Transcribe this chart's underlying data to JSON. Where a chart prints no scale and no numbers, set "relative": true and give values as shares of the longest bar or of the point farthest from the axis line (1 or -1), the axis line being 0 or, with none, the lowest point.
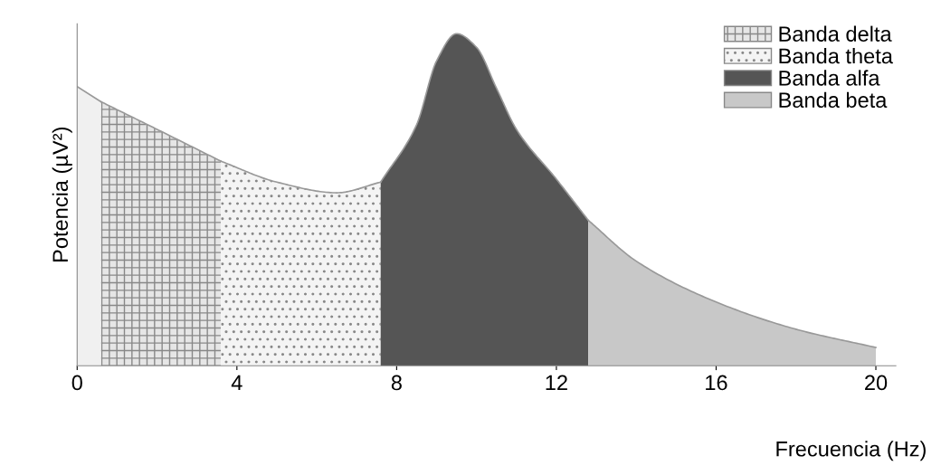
{
  "chart_data": {
    "type": "area",
    "relative": true,
    "xlabel": "Frecuencia (Hz)",
    "ylabel": "Potencia (µV²)",
    "xlim": [
      0,
      20.5
    ],
    "xticks": [
      0,
      4,
      8,
      12,
      16,
      20
    ],
    "legend": "top right",
    "grid": false,
    "series": [
      {
        "color": "#f0f0f0",
        "x": [
          0,
          0.6
        ],
        "values": [
          0.841,
          0.795
        ]
      },
      {
        "name": "Banda delta",
        "color": "#e6e6e6",
        "x": [
          0.6,
          2,
          3.6
        ],
        "values": [
          0.795,
          0.712,
          0.616
        ]
      },
      {
        "name": "Banda theta",
        "color": "#f4f4f4",
        "x": [
          3.6,
          5,
          6.5,
          7.6
        ],
        "values": [
          0.616,
          0.553,
          0.521,
          0.553
        ]
      },
      {
        "name": "Banda alfa",
        "color": "#555555",
        "x": [
          7.6,
          8.5,
          9,
          9.5,
          10,
          10.5,
          11,
          12,
          12.8
        ],
        "values": [
          0.553,
          0.726,
          0.918,
          1.0,
          0.959,
          0.836,
          0.712,
          0.562,
          0.438
        ]
      },
      {
        "name": "Banda beta",
        "color": "#c8c8c8",
        "x": [
          12.8,
          14,
          16,
          18,
          20
        ],
        "values": [
          0.438,
          0.315,
          0.192,
          0.11,
          0.055
        ]
      }
    ]
  }
}
